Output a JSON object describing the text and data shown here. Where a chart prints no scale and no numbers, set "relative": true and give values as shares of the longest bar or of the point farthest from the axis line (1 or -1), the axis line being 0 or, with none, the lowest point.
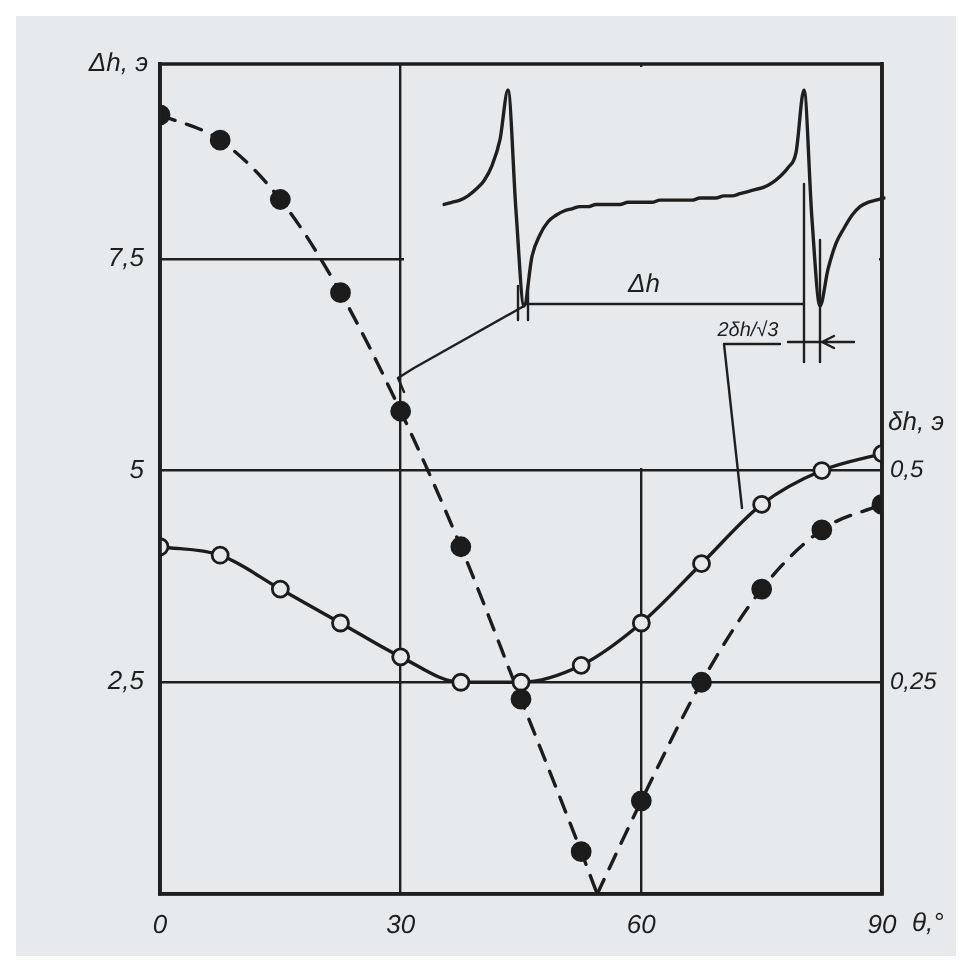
{
  "chart_data": [
    {
      "type": "line",
      "xlabel": "θ,°",
      "ylabel": "Δh, э",
      "y2label": "δh, э",
      "series": [
        {
          "type": "scatter",
          "color": "#1c1c1c",
          "x": [
            0,
            7.5,
            15,
            22.5,
            30,
            37.5,
            45,
            52.5,
            60,
            67.5,
            75,
            82.5,
            90
          ],
          "values": [
            9.2,
            8.9,
            8.2,
            7.1,
            5.7,
            4.1,
            2.3,
            0.5,
            1.1,
            2.5,
            3.6,
            4.3,
            4.6
          ],
          "marker": "circle"
        },
        {
          "color": "#1c1c1c",
          "axis": "y2",
          "x": [
            0,
            7.5,
            15,
            22.5,
            30,
            37.5,
            45,
            52.5,
            60,
            67.5,
            75,
            82.5,
            90
          ],
          "values": [
            0.41,
            0.4,
            0.36,
            0.32,
            0.28,
            0.25,
            0.25,
            0.27,
            0.32,
            0.39,
            0.46,
            0.5,
            0.52
          ],
          "marker": "circle",
          "line_style": "solid"
        },
        {
          "color": "#1c1c1c",
          "x": [
            0,
            7.5,
            15,
            22.5,
            30,
            37.5,
            45,
            52.5,
            54.5
          ],
          "values": [
            9.2,
            8.9,
            8.2,
            7.1,
            5.7,
            4.1,
            2.3,
            0.5,
            0
          ],
          "marker": "none",
          "line_style": "dashed"
        },
        {
          "color": "#1c1c1c",
          "x": [
            54.5,
            60,
            67.5,
            75,
            82.5,
            90
          ],
          "values": [
            0,
            1.1,
            2.5,
            3.6,
            4.3,
            4.6
          ],
          "marker": "none",
          "line_style": "dashed"
        }
      ],
      "xlim": [
        0,
        90
      ],
      "xticks": [
        0,
        30,
        60,
        90
      ],
      "ylim": [
        0,
        9.8
      ],
      "yticks": [
        {
          "value": 2.5,
          "label": "2,5"
        },
        5,
        {
          "value": 7.5,
          "label": "7,5"
        }
      ],
      "y2lim": [
        0,
        0.98
      ],
      "y2ticks": [
        {
          "value": 0.25,
          "label": "0,25"
        },
        {
          "value": 0.5,
          "label": "0,5"
        }
      ],
      "grid": true
    },
    {
      "type": "line",
      "relative": true,
      "tick_labels": false,
      "annotations": [
        "Δh",
        "2δh/√3"
      ],
      "categories": [
        null,
        null,
        null,
        null,
        null,
        null,
        null,
        null,
        null,
        null,
        null,
        null,
        null,
        null,
        null,
        null,
        null,
        null,
        null,
        null,
        null,
        null,
        null,
        null,
        null,
        null,
        null,
        null,
        null,
        null,
        null,
        null,
        null,
        null,
        null,
        null,
        null,
        null,
        null,
        null,
        null,
        null,
        null,
        null,
        null,
        null,
        null,
        null,
        null,
        null,
        null,
        null,
        null,
        null,
        null,
        null
      ],
      "series": [
        {
          "color": "#1f1f1f",
          "values": [
            0.47,
            0.48,
            0.49,
            0.51,
            0.54,
            0.58,
            0.65,
            0.77,
            1,
            0.44,
            0,
            0.23,
            0.33,
            0.39,
            0.42,
            0.44,
            0.45,
            0.46,
            0.46,
            0.47,
            0.47,
            0.47,
            0.47,
            0.48,
            0.48,
            0.48,
            0.48,
            0.49,
            0.49,
            0.49,
            0.49,
            0.49,
            0.5,
            0.5,
            0.5,
            0.51,
            0.51,
            0.52,
            0.53,
            0.54,
            0.55,
            0.57,
            0.6,
            0.64,
            0.71,
            1,
            0.4,
            0,
            0.17,
            0.29,
            0.36,
            0.42,
            0.46,
            0.48,
            0.49,
            0.5
          ]
        }
      ]
    }
  ]
}
